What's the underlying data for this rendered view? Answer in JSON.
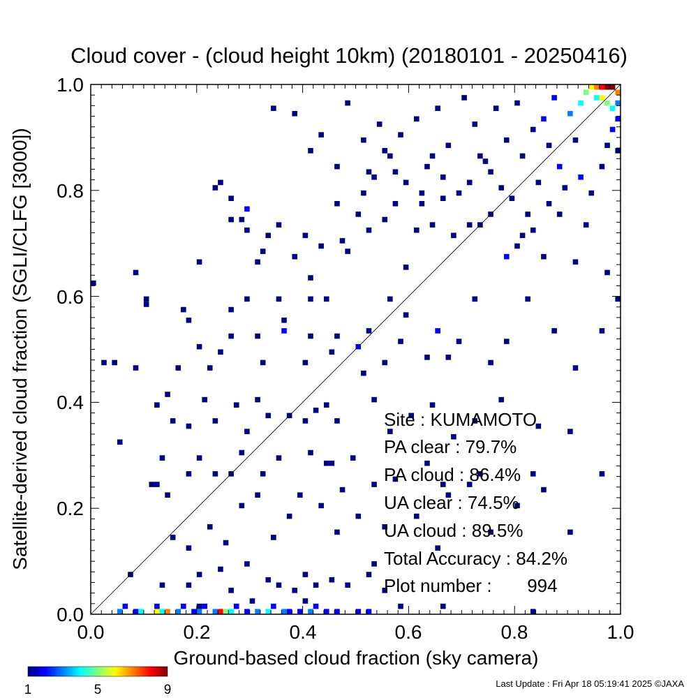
{
  "chart_data": {
    "type": "heatmap",
    "title": "Cloud cover - (cloud height 10km)  (20180101 - 20250416)",
    "xlabel": "Ground-based cloud fraction (sky camera)",
    "ylabel": "Satellite-derived cloud fraction (SGLI/CLFG [3000])",
    "xlim": [
      0.0,
      1.0
    ],
    "ylim": [
      0.0,
      1.0
    ],
    "xticks": [
      "0.0",
      "0.2",
      "0.4",
      "0.6",
      "0.8",
      "1.0"
    ],
    "yticks": [
      "0.0",
      "0.2",
      "0.4",
      "0.6",
      "0.8",
      "1.0"
    ],
    "bin_size": 0.01,
    "reference_line": "y = x",
    "colorbar": {
      "min": 1,
      "max": 9,
      "ticks": [
        "1",
        "5",
        "9"
      ]
    },
    "cells": [
      [
        0.05,
        0.0,
        3
      ],
      [
        0.06,
        0.01,
        2
      ],
      [
        0.08,
        0.0,
        2
      ],
      [
        0.09,
        0.0,
        4
      ],
      [
        0.12,
        0.0,
        6
      ],
      [
        0.13,
        0.0,
        4
      ],
      [
        0.14,
        0.0,
        7
      ],
      [
        0.16,
        0.0,
        3
      ],
      [
        0.17,
        0.01,
        2
      ],
      [
        0.19,
        0.0,
        2
      ],
      [
        0.2,
        0.0,
        3
      ],
      [
        0.21,
        0.01,
        2
      ],
      [
        0.23,
        0.0,
        3
      ],
      [
        0.24,
        0.0,
        8
      ],
      [
        0.25,
        0.0,
        5
      ],
      [
        0.26,
        0.0,
        4
      ],
      [
        0.27,
        0.01,
        2
      ],
      [
        0.29,
        0.0,
        2
      ],
      [
        0.31,
        0.0,
        3
      ],
      [
        0.33,
        0.0,
        4
      ],
      [
        0.34,
        0.01,
        2
      ],
      [
        0.36,
        0.0,
        3
      ],
      [
        0.37,
        0.0,
        2
      ],
      [
        0.39,
        0.0,
        2
      ],
      [
        0.41,
        0.0,
        3
      ],
      [
        0.42,
        0.01,
        2
      ],
      [
        0.44,
        0.0,
        2
      ],
      [
        0.46,
        0.0,
        2
      ],
      [
        0.5,
        0.0,
        2
      ],
      [
        0.52,
        0.0,
        2
      ],
      [
        0.58,
        0.01,
        1
      ],
      [
        0.66,
        0.01,
        1
      ],
      [
        0.83,
        0.0,
        1
      ],
      [
        0.12,
        0.01,
        2
      ],
      [
        0.2,
        0.01,
        1
      ],
      [
        0.3,
        0.02,
        1
      ],
      [
        0.4,
        0.02,
        1
      ],
      [
        0.07,
        0.07,
        1
      ],
      [
        0.13,
        0.05,
        1
      ],
      [
        0.18,
        0.05,
        1
      ],
      [
        0.2,
        0.07,
        1
      ],
      [
        0.24,
        0.08,
        1
      ],
      [
        0.26,
        0.04,
        1
      ],
      [
        0.29,
        0.09,
        1
      ],
      [
        0.33,
        0.06,
        1
      ],
      [
        0.35,
        0.05,
        1
      ],
      [
        0.38,
        0.04,
        1
      ],
      [
        0.4,
        0.07,
        1
      ],
      [
        0.42,
        0.05,
        1
      ],
      [
        0.45,
        0.06,
        1
      ],
      [
        0.48,
        0.05,
        1
      ],
      [
        0.52,
        0.07,
        1
      ],
      [
        0.53,
        0.09,
        1
      ],
      [
        0.55,
        0.04,
        1
      ],
      [
        0.15,
        0.14,
        1
      ],
      [
        0.18,
        0.12,
        1
      ],
      [
        0.22,
        0.16,
        1
      ],
      [
        0.25,
        0.13,
        1
      ],
      [
        0.28,
        0.2,
        1
      ],
      [
        0.31,
        0.22,
        1
      ],
      [
        0.34,
        0.14,
        1
      ],
      [
        0.37,
        0.18,
        1
      ],
      [
        0.39,
        0.22,
        1
      ],
      [
        0.43,
        0.2,
        1
      ],
      [
        0.46,
        0.15,
        1
      ],
      [
        0.47,
        0.23,
        1
      ],
      [
        0.5,
        0.18,
        1
      ],
      [
        0.55,
        0.16,
        1
      ],
      [
        0.61,
        0.18,
        1
      ],
      [
        0.65,
        0.12,
        1
      ],
      [
        0.67,
        0.22,
        1
      ],
      [
        0.71,
        0.24,
        1
      ],
      [
        0.75,
        0.15,
        1
      ],
      [
        0.8,
        0.2,
        1
      ],
      [
        0.83,
        0.26,
        1
      ],
      [
        0.85,
        0.23,
        1
      ],
      [
        0.9,
        0.15,
        1
      ],
      [
        0.96,
        0.26,
        1
      ],
      [
        0.11,
        0.24,
        1
      ],
      [
        0.12,
        0.24,
        1
      ],
      [
        0.13,
        0.29,
        1
      ],
      [
        0.14,
        0.22,
        1
      ],
      [
        0.18,
        0.26,
        1
      ],
      [
        0.2,
        0.29,
        1
      ],
      [
        0.23,
        0.26,
        1
      ],
      [
        0.26,
        0.26,
        1
      ],
      [
        0.28,
        0.3,
        1
      ],
      [
        0.32,
        0.26,
        1
      ],
      [
        0.35,
        0.29,
        1
      ],
      [
        0.41,
        0.3,
        1
      ],
      [
        0.44,
        0.28,
        1
      ],
      [
        0.45,
        0.28,
        1
      ],
      [
        0.49,
        0.29,
        1
      ],
      [
        0.53,
        0.24,
        1
      ],
      [
        0.57,
        0.25,
        1
      ],
      [
        0.63,
        0.28,
        1
      ],
      [
        0.66,
        0.24,
        1
      ],
      [
        0.73,
        0.26,
        1
      ],
      [
        0.05,
        0.32,
        1
      ],
      [
        0.12,
        0.39,
        1
      ],
      [
        0.15,
        0.36,
        1
      ],
      [
        0.18,
        0.35,
        1
      ],
      [
        0.21,
        0.4,
        1
      ],
      [
        0.23,
        0.36,
        1
      ],
      [
        0.27,
        0.39,
        1
      ],
      [
        0.29,
        0.34,
        1
      ],
      [
        0.31,
        0.4,
        1
      ],
      [
        0.33,
        0.37,
        1
      ],
      [
        0.37,
        0.37,
        1
      ],
      [
        0.4,
        0.36,
        1
      ],
      [
        0.42,
        0.38,
        1
      ],
      [
        0.44,
        0.39,
        1
      ],
      [
        0.46,
        0.36,
        1
      ],
      [
        0.53,
        0.4,
        1
      ],
      [
        0.56,
        0.34,
        1
      ],
      [
        0.6,
        0.37,
        1
      ],
      [
        0.64,
        0.39,
        1
      ],
      [
        0.68,
        0.33,
        1
      ],
      [
        0.72,
        0.36,
        1
      ],
      [
        0.77,
        0.4,
        1
      ],
      [
        0.84,
        0.35,
        1
      ],
      [
        0.9,
        0.34,
        1
      ],
      [
        0.0,
        0.62,
        1
      ],
      [
        0.02,
        0.47,
        1
      ],
      [
        0.04,
        0.47,
        1
      ],
      [
        0.08,
        0.46,
        1
      ],
      [
        0.1,
        0.59,
        1
      ],
      [
        0.1,
        0.58,
        1
      ],
      [
        0.14,
        0.41,
        1
      ],
      [
        0.16,
        0.46,
        1
      ],
      [
        0.17,
        0.57,
        1
      ],
      [
        0.18,
        0.55,
        1
      ],
      [
        0.2,
        0.5,
        1
      ],
      [
        0.22,
        0.46,
        1
      ],
      [
        0.24,
        0.49,
        1
      ],
      [
        0.26,
        0.52,
        1
      ],
      [
        0.26,
        0.57,
        1
      ],
      [
        0.29,
        0.59,
        1
      ],
      [
        0.31,
        0.52,
        1
      ],
      [
        0.32,
        0.47,
        1
      ],
      [
        0.35,
        0.59,
        1
      ],
      [
        0.36,
        0.55,
        1
      ],
      [
        0.36,
        0.53,
        2
      ],
      [
        0.4,
        0.47,
        1
      ],
      [
        0.41,
        0.52,
        1
      ],
      [
        0.41,
        0.59,
        1
      ],
      [
        0.44,
        0.59,
        1
      ],
      [
        0.45,
        0.49,
        1
      ],
      [
        0.46,
        0.52,
        1
      ],
      [
        0.5,
        0.5,
        2
      ],
      [
        0.51,
        0.45,
        1
      ],
      [
        0.52,
        0.53,
        1
      ],
      [
        0.55,
        0.47,
        1
      ],
      [
        0.56,
        0.59,
        1
      ],
      [
        0.58,
        0.51,
        1
      ],
      [
        0.59,
        0.56,
        1
      ],
      [
        0.63,
        0.48,
        1
      ],
      [
        0.65,
        0.53,
        2
      ],
      [
        0.67,
        0.48,
        1
      ],
      [
        0.69,
        0.51,
        1
      ],
      [
        0.72,
        0.59,
        1
      ],
      [
        0.75,
        0.47,
        1
      ],
      [
        0.78,
        0.51,
        1
      ],
      [
        0.82,
        0.59,
        1
      ],
      [
        0.87,
        0.53,
        1
      ],
      [
        0.91,
        0.46,
        1
      ],
      [
        0.96,
        0.53,
        1
      ],
      [
        0.99,
        0.59,
        1
      ],
      [
        0.08,
        0.64,
        1
      ],
      [
        0.2,
        0.66,
        1
      ],
      [
        0.26,
        0.74,
        1
      ],
      [
        0.28,
        0.74,
        1
      ],
      [
        0.29,
        0.72,
        1
      ],
      [
        0.29,
        0.76,
        2
      ],
      [
        0.31,
        0.66,
        1
      ],
      [
        0.32,
        0.68,
        1
      ],
      [
        0.33,
        0.71,
        1
      ],
      [
        0.35,
        0.73,
        1
      ],
      [
        0.38,
        0.67,
        1
      ],
      [
        0.4,
        0.71,
        1
      ],
      [
        0.41,
        0.63,
        1
      ],
      [
        0.43,
        0.69,
        1
      ],
      [
        0.46,
        0.77,
        1
      ],
      [
        0.47,
        0.7,
        1
      ],
      [
        0.48,
        0.68,
        1
      ],
      [
        0.5,
        0.75,
        1
      ],
      [
        0.51,
        0.79,
        1
      ],
      [
        0.52,
        0.72,
        1
      ],
      [
        0.55,
        0.74,
        1
      ],
      [
        0.57,
        0.77,
        1
      ],
      [
        0.59,
        0.65,
        1
      ],
      [
        0.61,
        0.72,
        1
      ],
      [
        0.62,
        0.77,
        1
      ],
      [
        0.64,
        0.73,
        1
      ],
      [
        0.66,
        0.78,
        1
      ],
      [
        0.68,
        0.71,
        1
      ],
      [
        0.71,
        0.73,
        1
      ],
      [
        0.73,
        0.73,
        1
      ],
      [
        0.75,
        0.75,
        1
      ],
      [
        0.78,
        0.67,
        2
      ],
      [
        0.8,
        0.69,
        1
      ],
      [
        0.81,
        0.71,
        1
      ],
      [
        0.83,
        0.72,
        1
      ],
      [
        0.85,
        0.67,
        1
      ],
      [
        0.88,
        0.75,
        1
      ],
      [
        0.91,
        0.66,
        1
      ],
      [
        0.93,
        0.73,
        1
      ],
      [
        0.97,
        0.64,
        1
      ],
      [
        0.23,
        0.8,
        1
      ],
      [
        0.24,
        0.81,
        1
      ],
      [
        0.26,
        0.78,
        1
      ],
      [
        0.34,
        0.95,
        1
      ],
      [
        0.38,
        0.94,
        1
      ],
      [
        0.41,
        0.87,
        1
      ],
      [
        0.43,
        0.9,
        1
      ],
      [
        0.46,
        0.84,
        1
      ],
      [
        0.48,
        0.96,
        1
      ],
      [
        0.51,
        0.89,
        1
      ],
      [
        0.52,
        0.83,
        1
      ],
      [
        0.54,
        0.92,
        1
      ],
      [
        0.56,
        0.86,
        1
      ],
      [
        0.58,
        0.9,
        1
      ],
      [
        0.61,
        0.93,
        1
      ],
      [
        0.63,
        0.84,
        1
      ],
      [
        0.65,
        0.95,
        1
      ],
      [
        0.67,
        0.88,
        1
      ],
      [
        0.7,
        0.97,
        1
      ],
      [
        0.72,
        0.92,
        1
      ],
      [
        0.74,
        0.85,
        1
      ],
      [
        0.76,
        0.95,
        1
      ],
      [
        0.78,
        0.89,
        1
      ],
      [
        0.8,
        0.96,
        1
      ],
      [
        0.81,
        0.86,
        1
      ],
      [
        0.83,
        0.91,
        1
      ],
      [
        0.85,
        0.93,
        2
      ],
      [
        0.86,
        0.88,
        1
      ],
      [
        0.87,
        0.97,
        2
      ],
      [
        0.88,
        0.84,
        2
      ],
      [
        0.9,
        0.94,
        3
      ],
      [
        0.91,
        0.89,
        1
      ],
      [
        0.92,
        0.96,
        4
      ],
      [
        0.93,
        0.98,
        5
      ],
      [
        0.94,
        0.99,
        6
      ],
      [
        0.95,
        0.99,
        7
      ],
      [
        0.96,
        0.99,
        8
      ],
      [
        0.97,
        0.99,
        9
      ],
      [
        0.98,
        0.99,
        9
      ],
      [
        0.99,
        0.98,
        7
      ],
      [
        0.97,
        0.96,
        5
      ],
      [
        0.98,
        0.95,
        4
      ],
      [
        0.96,
        0.97,
        6
      ],
      [
        0.99,
        0.96,
        3
      ],
      [
        0.95,
        0.97,
        4
      ],
      [
        0.99,
        0.93,
        2
      ],
      [
        0.98,
        0.91,
        2
      ],
      [
        0.97,
        0.88,
        1
      ],
      [
        0.99,
        0.87,
        1
      ],
      [
        0.96,
        0.84,
        1
      ],
      [
        0.92,
        0.82,
        2
      ],
      [
        0.94,
        0.79,
        1
      ],
      [
        0.89,
        0.8,
        1
      ],
      [
        0.86,
        0.77,
        1
      ],
      [
        0.84,
        0.81,
        1
      ],
      [
        0.82,
        0.75,
        1
      ],
      [
        0.79,
        0.78,
        1
      ],
      [
        0.77,
        0.8,
        1
      ],
      [
        0.75,
        0.83,
        1
      ],
      [
        0.73,
        0.86,
        1
      ],
      [
        0.71,
        0.81,
        1
      ],
      [
        0.69,
        0.79,
        1
      ],
      [
        0.66,
        0.82,
        1
      ],
      [
        0.64,
        0.86,
        1
      ],
      [
        0.62,
        0.79,
        1
      ],
      [
        0.59,
        0.81,
        1
      ],
      [
        0.57,
        0.83,
        1
      ],
      [
        0.55,
        0.87,
        1
      ],
      [
        0.53,
        0.82,
        1
      ]
    ],
    "annotations": {
      "site": "Site : KUMAMOTO",
      "pa_clear": "PA clear :  79.7%",
      "pa_cloud": "PA cloud :  86.4%",
      "ua_clear": "UA clear :  74.5%",
      "ua_cloud": "UA cloud :  89.5%",
      "total_accuracy": "Total Accuracy :  84.2%",
      "plot_number": "Plot number :       994"
    }
  },
  "footer": {
    "last_update": "Last Update : Fri Apr 18 05:19:41 2025  ©JAXA"
  }
}
